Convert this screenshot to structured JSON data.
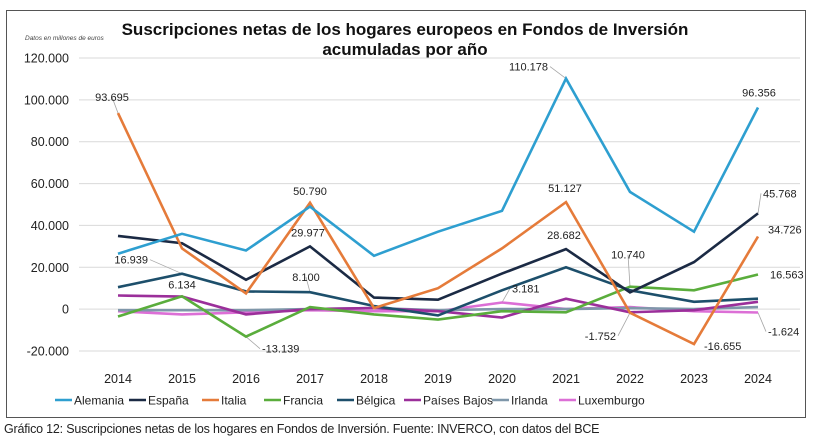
{
  "caption": "Gráfico 12: Suscripciones netas de los hogares en Fondos de Inversión. Fuente: INVERCO, con datos del BCE",
  "chart_data": {
    "type": "line",
    "title": "Suscripciones netas de los hogares europeos en Fondos de Inversión",
    "subtitle": "acumuladas por año",
    "units_note": "Datos en millones de euros",
    "xlabel": "",
    "ylabel": "",
    "categories": [
      "2014",
      "2015",
      "2016",
      "2017",
      "2018",
      "2019",
      "2020",
      "2021",
      "2022",
      "2023",
      "2024"
    ],
    "ylim": [
      -20000,
      120000
    ],
    "yticks": [
      -20000,
      0,
      20000,
      40000,
      60000,
      80000,
      100000,
      120000
    ],
    "ytick_labels": [
      "-20.000",
      "0",
      "20.000",
      "40.000",
      "60.000",
      "80.000",
      "100.000",
      "120.000"
    ],
    "grid": "horizontal",
    "legend_position": "bottom",
    "series": [
      {
        "name": "Alemania",
        "color": "#2e9fd0",
        "values": [
          26500,
          36000,
          28000,
          49000,
          25500,
          37000,
          47000,
          110178,
          56000,
          37000,
          96356
        ]
      },
      {
        "name": "España",
        "color": "#1b2a44",
        "values": [
          35000,
          31500,
          14000,
          29977,
          5500,
          4500,
          17000,
          28682,
          8000,
          22500,
          45768
        ]
      },
      {
        "name": "Italia",
        "color": "#e57b3a",
        "values": [
          93695,
          29000,
          7500,
          50790,
          500,
          10000,
          29000,
          51127,
          -1752,
          -16655,
          34726
        ]
      },
      {
        "name": "Francia",
        "color": "#5aad3c",
        "values": [
          -3500,
          6134,
          -13139,
          1000,
          -2500,
          -5000,
          -1000,
          -1500,
          10740,
          9000,
          16563
        ]
      },
      {
        "name": "Bélgica",
        "color": "#1d4f6b",
        "values": [
          10500,
          16939,
          8500,
          8100,
          1500,
          -3000,
          9000,
          20000,
          9000,
          3500,
          5000
        ]
      },
      {
        "name": "Países Bajos",
        "color": "#9b2f9a",
        "values": [
          6500,
          6000,
          -2500,
          0,
          500,
          -1000,
          -4000,
          5000,
          -1500,
          -500,
          3500
        ]
      },
      {
        "name": "Irlanda",
        "color": "#7f97aa",
        "values": [
          -500,
          -500,
          -500,
          0,
          500,
          -500,
          0,
          0,
          500,
          0,
          1000
        ]
      },
      {
        "name": "Luxemburgo",
        "color": "#dc6fd6",
        "values": [
          -1000,
          -2500,
          -1500,
          -500,
          -1000,
          -1000,
          3181,
          0,
          1000,
          -1000,
          -1624
        ]
      }
    ],
    "annotations": [
      {
        "series": "Italia",
        "x": "2014",
        "text": "93.695"
      },
      {
        "series": "Bélgica",
        "x": "2015",
        "text": "16.939"
      },
      {
        "series": "Francia",
        "x": "2015",
        "text": "6.134"
      },
      {
        "series": "Francia",
        "x": "2016",
        "text": "-13.139"
      },
      {
        "series": "Italia",
        "x": "2017",
        "text": "50.790"
      },
      {
        "series": "España",
        "x": "2017",
        "text": "29.977"
      },
      {
        "series": "Bélgica",
        "x": "2017",
        "text": "8.100"
      },
      {
        "series": "Luxemburgo",
        "x": "2020",
        "text": "3.181"
      },
      {
        "series": "Alemania",
        "x": "2021",
        "text": "110.178"
      },
      {
        "series": "Italia",
        "x": "2021",
        "text": "51.127"
      },
      {
        "series": "España",
        "x": "2021",
        "text": "28.682"
      },
      {
        "series": "Francia",
        "x": "2022",
        "text": "10.740"
      },
      {
        "series": "Italia",
        "x": "2022",
        "text": "-1.752"
      },
      {
        "series": "Italia",
        "x": "2023",
        "text": "-16.655"
      },
      {
        "series": "Alemania",
        "x": "2024",
        "text": "96.356"
      },
      {
        "series": "España",
        "x": "2024",
        "text": "45.768"
      },
      {
        "series": "Italia",
        "x": "2024",
        "text": "34.726"
      },
      {
        "series": "Francia",
        "x": "2024",
        "text": "16.563"
      },
      {
        "series": "Luxemburgo",
        "x": "2024",
        "text": "-1.624"
      }
    ]
  }
}
